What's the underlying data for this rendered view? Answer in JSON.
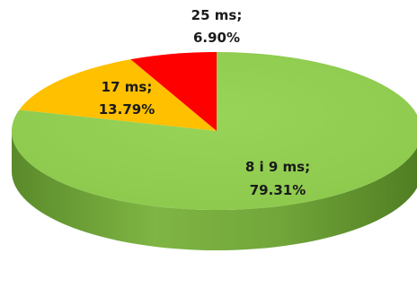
{
  "chart_data": {
    "type": "pie",
    "style": "3d",
    "title": "",
    "slices": [
      {
        "category": "25 ms",
        "percent": "6.90%",
        "value": 6.9,
        "color": "#ff0000",
        "side_color": "#b30000"
      },
      {
        "category": "17 ms",
        "percent": "13.79%",
        "value": 13.79,
        "color": "#ffc000",
        "side_color": "#b88a00"
      },
      {
        "category": "8 i 9 ms",
        "percent": "79.31%",
        "value": 79.31,
        "color": "#92d050",
        "side_color": "#5e8f2c"
      }
    ],
    "legend": "none"
  }
}
